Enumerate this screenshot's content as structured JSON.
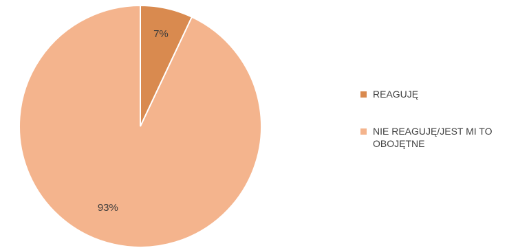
{
  "chart_data": {
    "type": "pie",
    "categories": [
      "REAGUJĘ",
      "NIE REAGUJĘ/JEST MI TO OBOJĘTNE"
    ],
    "values": [
      7,
      93
    ],
    "data_labels": [
      "7%",
      "93%"
    ],
    "colors": [
      "#d98a4f",
      "#f4b48d"
    ],
    "legend_position": "right",
    "start_angle": "12 o'clock, clockwise"
  }
}
